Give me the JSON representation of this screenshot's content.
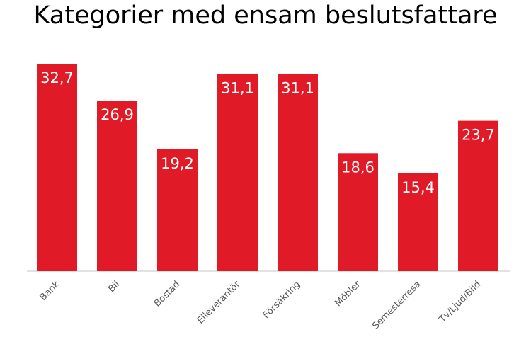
{
  "chart_data": {
    "type": "bar",
    "title": "Kategorier med ensam beslutsfattare",
    "categories": [
      "Bank",
      "Bil",
      "Bostad",
      "Elleverantör",
      "Försäkring",
      "Möbler",
      "Semesterresa",
      "Tv/Ljud/Bild"
    ],
    "values": [
      32.7,
      26.9,
      19.2,
      31.1,
      31.1,
      18.6,
      15.4,
      23.7
    ],
    "value_labels": [
      "32,7",
      "26,9",
      "19,2",
      "31,1",
      "31,1",
      "18,6",
      "15,4",
      "23,7"
    ],
    "ylim": [
      0,
      35
    ],
    "grid": false,
    "legend": "none",
    "bar_color": "#E01B27",
    "axis_color": "#D9D9D9",
    "label_color": "#595959"
  }
}
